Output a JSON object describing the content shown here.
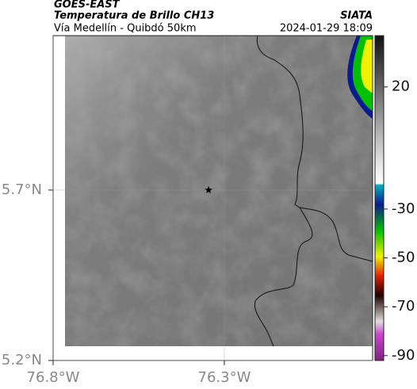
{
  "header": {
    "title": "GOES-EAST",
    "subtitle": "Temperatura de Brillo CH13",
    "source": "SIATA",
    "region": "Vía Medellín - Quibdó 50km",
    "datetime": "2024-01-29 18:09"
  },
  "map": {
    "xlim": [
      -76.8,
      -75.867
    ],
    "ylim": [
      5.2,
      6.153
    ],
    "xticks": [
      {
        "value": -76.8,
        "label": "76.8°W"
      },
      {
        "value": -76.3,
        "label": "76.3°W"
      }
    ],
    "yticks": [
      {
        "value": 5.2,
        "label": "5.2°N"
      },
      {
        "value": 5.7,
        "label": "5.7°N"
      }
    ],
    "marker": {
      "lon": -76.346,
      "lat": 5.7
    }
  },
  "colorbar": {
    "range": [
      41,
      -92
    ],
    "ticks": [
      20,
      -30,
      -50,
      -70,
      -90
    ]
  }
}
